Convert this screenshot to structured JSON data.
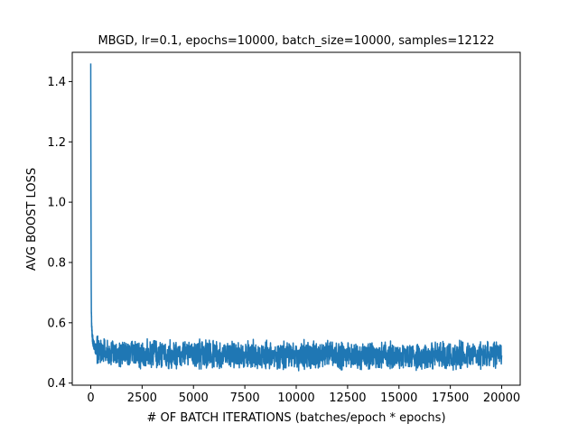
{
  "chart_data": {
    "type": "line",
    "title": "MBGD, lr=0.1, epochs=10000, batch_size=10000, samples=12122",
    "xlabel": "# OF BATCH ITERATIONS (batches/epoch * epochs)",
    "ylabel": "AVG BOOST LOSS",
    "xlim": [
      -900,
      20900
    ],
    "ylim": [
      0.393,
      1.497
    ],
    "x_ticks": [
      0,
      2500,
      5000,
      7500,
      10000,
      12500,
      15000,
      17500,
      20000
    ],
    "x_tick_labels": [
      "0",
      "2500",
      "5000",
      "7500",
      "10000",
      "12500",
      "15000",
      "17500",
      "20000"
    ],
    "y_ticks": [
      0.4,
      0.6,
      0.8,
      1.0,
      1.2,
      1.4
    ],
    "y_tick_labels": [
      "0.4",
      "0.6",
      "0.8",
      "1.0",
      "1.2",
      "1.4"
    ],
    "grid": false,
    "legend": "none",
    "series": [
      {
        "color": "#1f77b4",
        "x": [
          0,
          10,
          20,
          30,
          50,
          80,
          120,
          200,
          300,
          500,
          1000,
          2000,
          3000,
          5000,
          7500,
          10000,
          12500,
          15000,
          17500,
          20000
        ],
        "values": [
          1.46,
          1.05,
          0.78,
          0.64,
          0.58,
          0.55,
          0.53,
          0.515,
          0.51,
          0.505,
          0.5,
          0.495,
          0.493,
          0.492,
          0.492,
          0.49,
          0.49,
          0.488,
          0.49,
          0.49
        ],
        "noise_band": [
          -0.05,
          0.055
        ]
      }
    ]
  }
}
